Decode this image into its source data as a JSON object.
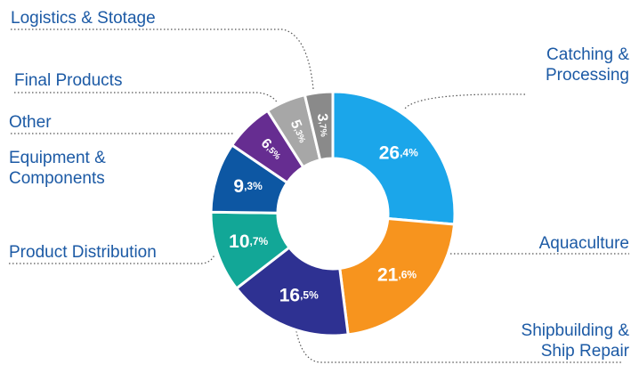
{
  "chart_data": {
    "type": "donut",
    "categories": [
      "Catching &\nProcessing",
      "Aquaculture",
      "Shipbuilding &\nShip Repair",
      "Product Distribution",
      "Equipment &\nComponents",
      "Other",
      "Final Products",
      "Logistics & Stotage"
    ],
    "values": [
      26.4,
      21.6,
      16.5,
      10.7,
      9.3,
      6.5,
      5.3,
      3.7
    ],
    "value_labels": [
      "26,4%",
      "21,6%",
      "16,5%",
      "10,7%",
      "9,3%",
      "6,5%",
      "5,3%",
      "3,7%"
    ],
    "colors": [
      "#1ba6ea",
      "#f7941e",
      "#2e3192",
      "#12a797",
      "#0d57a3",
      "#662d91",
      "#a7a7a7",
      "#8a8a8a"
    ]
  }
}
